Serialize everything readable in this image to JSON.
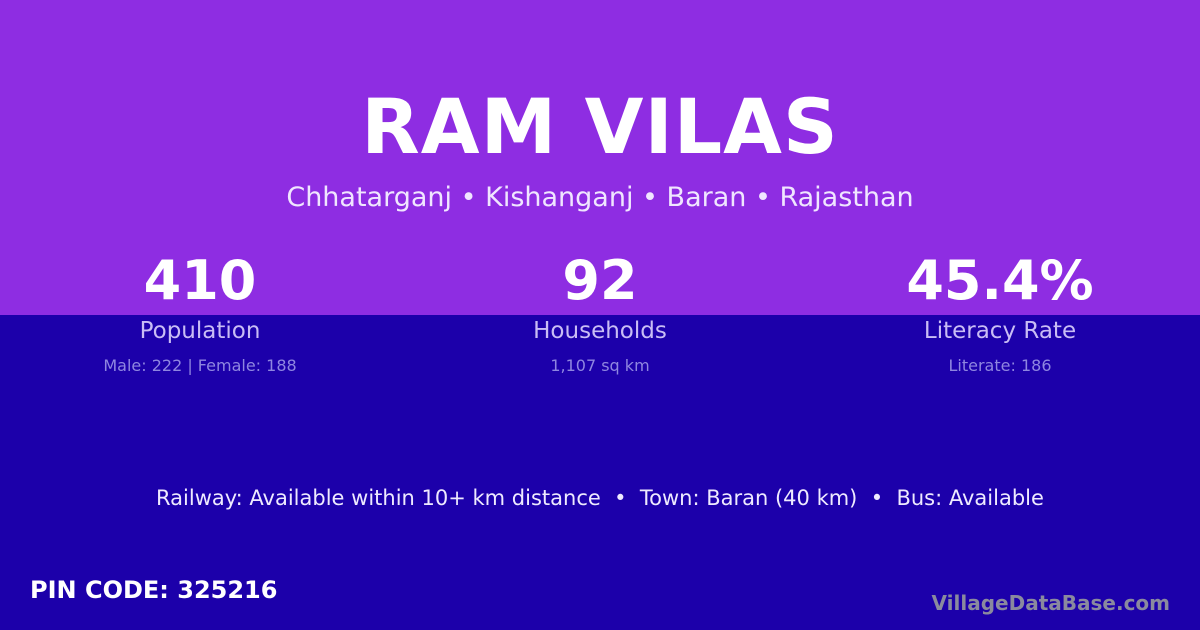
{
  "title": "RAM VILAS",
  "location": "Chhatarganj • Kishanganj • Baran • Rajasthan",
  "stats": [
    {
      "value": "410",
      "label": "Population",
      "detail": "Male: 222 | Female: 188"
    },
    {
      "value": "92",
      "label": "Households",
      "detail": "1,107 sq km"
    },
    {
      "value": "45.4%",
      "label": "Literacy Rate",
      "detail": "Literate: 186"
    }
  ],
  "connectivity": "Railway: Available within 10+ km distance  •  Town: Baran (40 km)  •  Bus: Available",
  "pin_code": "PIN CODE: 325216",
  "brand": "VillageDataBase.com",
  "colors": {
    "top": "#8e2de2",
    "bottom": "#1c00aa"
  }
}
